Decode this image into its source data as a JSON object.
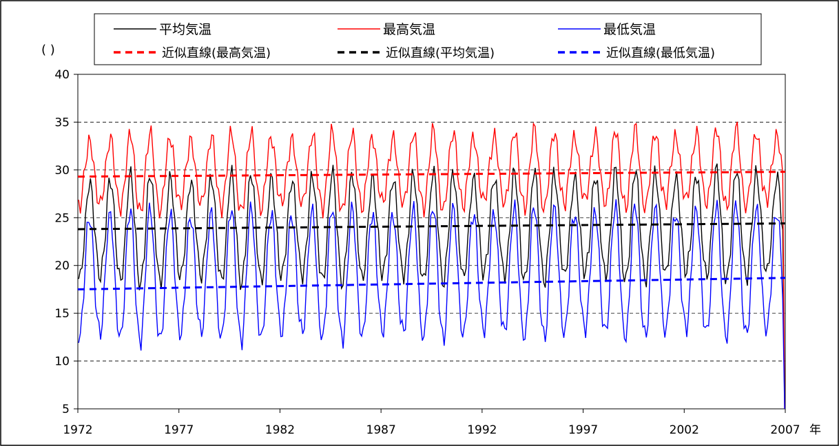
{
  "chart_data": {
    "type": "line",
    "ylabel": "(  )",
    "x_unit": "年",
    "xlim": [
      1972,
      2007
    ],
    "ylim": [
      5,
      40
    ],
    "y_ticks": [
      5,
      10,
      15,
      20,
      25,
      30,
      35,
      40
    ],
    "x_ticks": [
      1972,
      1977,
      1982,
      1987,
      1992,
      1997,
      2002,
      2007
    ],
    "grid": "horizontal dashed",
    "legend_position": "top",
    "monthly_profiles": {
      "note_months": "Jan..Dec",
      "max": [
        26.2,
        25.9,
        27.0,
        28.6,
        30.5,
        32.0,
        33.3,
        33.4,
        32.3,
        30.3,
        28.2,
        26.9
      ],
      "avg": [
        18.6,
        18.4,
        19.8,
        21.6,
        24.2,
        27.2,
        29.0,
        29.0,
        27.6,
        25.0,
        22.5,
        19.9
      ],
      "min": [
        12.8,
        12.4,
        14.0,
        16.8,
        20.5,
        23.8,
        25.2,
        25.3,
        23.5,
        20.0,
        16.3,
        13.8
      ]
    },
    "series": [
      {
        "name": "平均気温",
        "color": "#000000",
        "style": "solid",
        "start_year": 1972
      },
      {
        "name": "最高気温",
        "color": "#ff0000",
        "style": "solid",
        "start_year": 1972
      },
      {
        "name": "最低気温",
        "color": "#0000ff",
        "style": "solid",
        "start_year": 1972
      }
    ],
    "trendlines": [
      {
        "name": "近似直線(最高気温)",
        "color": "#ff0000",
        "style": "dashed",
        "start": [
          1972,
          29.3
        ],
        "end": [
          2007,
          29.8
        ]
      },
      {
        "name": "近似直線(平均気温)",
        "color": "#000000",
        "style": "dashed",
        "start": [
          1972,
          23.8
        ],
        "end": [
          2007,
          24.4
        ]
      },
      {
        "name": "近似直線(最低気温)",
        "color": "#0000ff",
        "style": "dashed",
        "start": [
          1972,
          17.5
        ],
        "end": [
          2007,
          18.7
        ]
      }
    ]
  }
}
